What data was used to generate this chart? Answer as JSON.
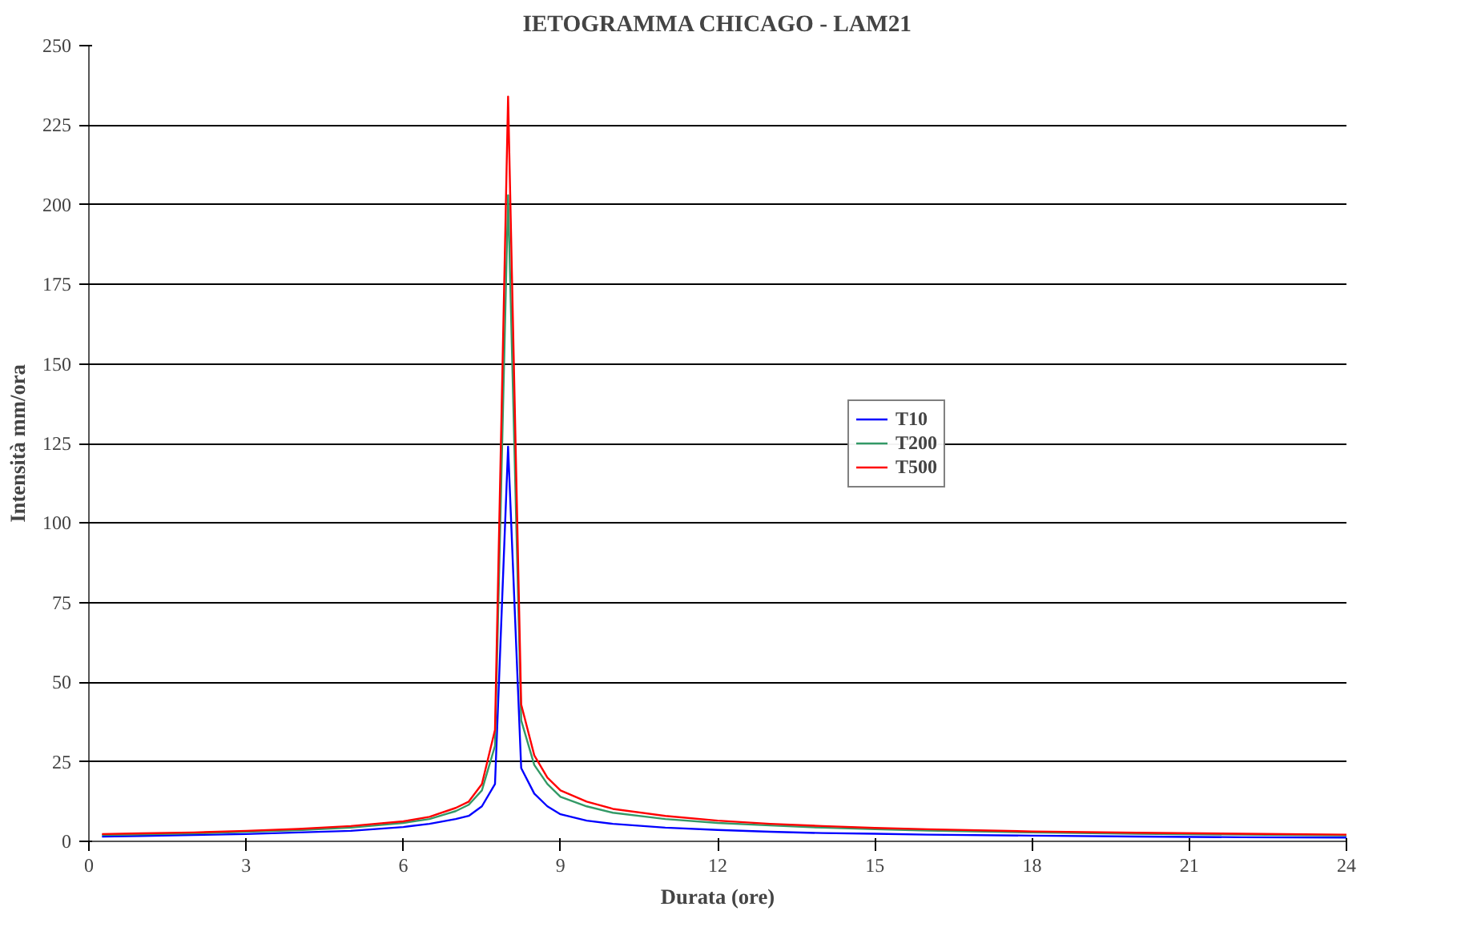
{
  "chart_data": {
    "type": "line",
    "title": "IETOGRAMMA CHICAGO - LAM21",
    "xlabel": "Durata (ore)",
    "ylabel": "Intensità mm/ora",
    "x": [
      0.25,
      1,
      2,
      3,
      4,
      5,
      6,
      6.5,
      7,
      7.25,
      7.5,
      7.75,
      8,
      8.25,
      8.5,
      8.75,
      9,
      9.5,
      10,
      11,
      12,
      13,
      14,
      15,
      16,
      18,
      20,
      22,
      24
    ],
    "series": [
      {
        "name": "T10",
        "color": "#0000ff",
        "values": [
          1.5,
          1.7,
          2,
          2.3,
          2.8,
          3.3,
          4.5,
          5.5,
          7,
          8,
          11,
          18,
          124,
          23,
          15,
          11,
          8.5,
          6.5,
          5.5,
          4.3,
          3.6,
          3,
          2.6,
          2.4,
          2.1,
          1.8,
          1.5,
          1.3,
          1.2
        ]
      },
      {
        "name": "T200",
        "color": "#339966",
        "values": [
          2,
          2.2,
          2.5,
          3,
          3.5,
          4.3,
          5.8,
          7,
          9.5,
          11.5,
          16,
          30,
          203,
          38,
          24,
          18,
          14,
          11,
          9,
          7,
          5.8,
          5,
          4.3,
          3.8,
          3.4,
          2.8,
          2.4,
          2.1,
          1.9
        ]
      },
      {
        "name": "T500",
        "color": "#ff0000",
        "values": [
          2.3,
          2.5,
          2.8,
          3.3,
          3.9,
          4.8,
          6.3,
          7.7,
          10.5,
          12.5,
          18,
          35,
          234,
          43,
          27,
          20,
          16,
          12.5,
          10.2,
          8,
          6.5,
          5.5,
          4.8,
          4.2,
          3.8,
          3.1,
          2.7,
          2.4,
          2.1
        ]
      }
    ],
    "xlim": [
      0,
      24
    ],
    "xticks": [
      0,
      3,
      6,
      9,
      12,
      15,
      18,
      21,
      24
    ],
    "ylim": [
      0,
      250
    ],
    "yticks": [
      0,
      25,
      50,
      75,
      100,
      125,
      150,
      175,
      200,
      225,
      250
    ],
    "grid": "y",
    "legend": "right",
    "marker": "none",
    "line_style": "solid"
  }
}
